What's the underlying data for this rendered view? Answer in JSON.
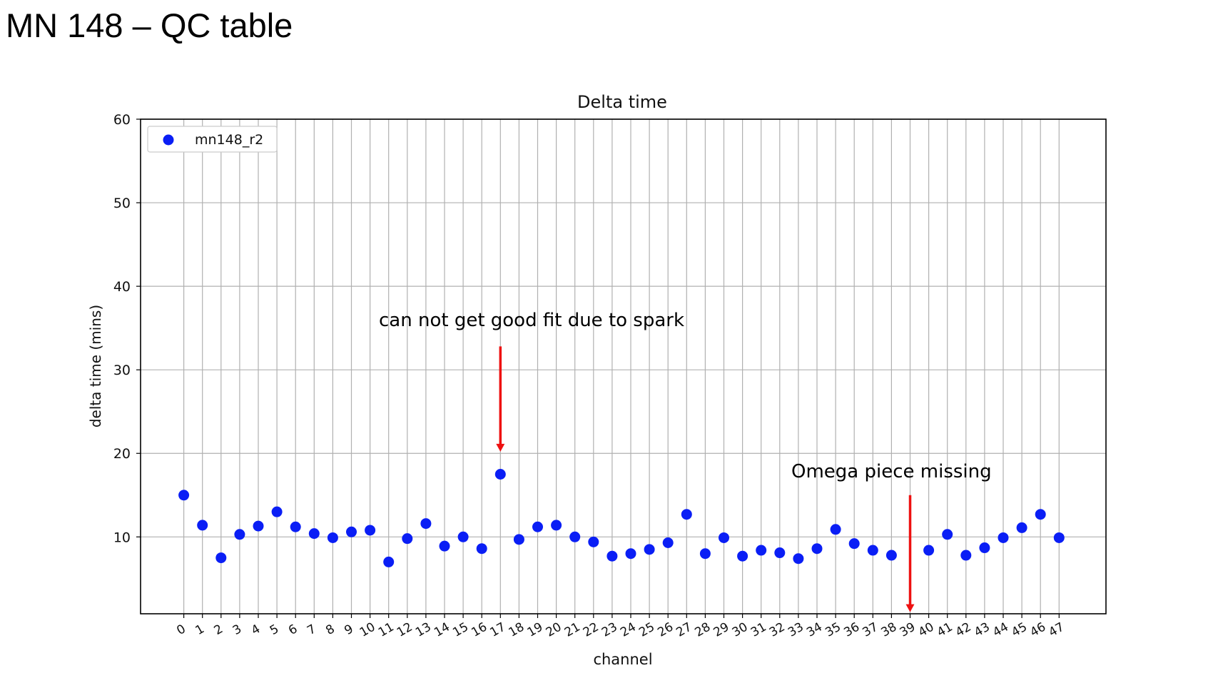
{
  "slide": {
    "title": "MN 148 – QC table"
  },
  "chart_data": {
    "type": "scatter",
    "title": "Delta time",
    "xlabel": "channel",
    "ylabel": "delta time (mins)",
    "ylim": [
      0.8,
      60
    ],
    "yticks": [
      10,
      20,
      30,
      40,
      50,
      60
    ],
    "grid": true,
    "legend_position": "top-left",
    "series": [
      {
        "name": "mn148_r2",
        "color": "#0a1ef5",
        "x": [
          0,
          1,
          2,
          3,
          4,
          5,
          6,
          7,
          8,
          9,
          10,
          11,
          12,
          13,
          14,
          15,
          16,
          17,
          18,
          19,
          20,
          21,
          22,
          23,
          24,
          25,
          26,
          27,
          28,
          29,
          30,
          31,
          32,
          33,
          34,
          35,
          36,
          37,
          38,
          40,
          41,
          42,
          43,
          44,
          45,
          46,
          47
        ],
        "y": [
          15.0,
          11.4,
          7.5,
          10.3,
          11.3,
          13.0,
          11.2,
          10.4,
          9.9,
          10.6,
          10.8,
          7.0,
          9.8,
          11.6,
          8.9,
          10.0,
          8.6,
          17.5,
          9.7,
          11.2,
          11.4,
          10.0,
          9.4,
          7.7,
          8.0,
          8.5,
          9.3,
          12.7,
          8.0,
          9.9,
          7.7,
          8.4,
          8.1,
          7.4,
          8.6,
          10.9,
          9.2,
          8.4,
          7.8,
          8.4,
          10.3,
          7.8,
          8.7,
          9.9,
          11.1,
          12.7,
          9.9
        ]
      }
    ],
    "categories": [
      "0",
      "1",
      "2",
      "3",
      "4",
      "5",
      "6",
      "7",
      "8",
      "9",
      "10",
      "11",
      "12",
      "13",
      "14",
      "15",
      "16",
      "17",
      "18",
      "19",
      "20",
      "21",
      "22",
      "23",
      "24",
      "25",
      "26",
      "27",
      "28",
      "29",
      "30",
      "31",
      "32",
      "33",
      "34",
      "35",
      "36",
      "37",
      "38",
      "39",
      "40",
      "41",
      "42",
      "43",
      "44",
      "45",
      "46",
      "47"
    ],
    "annotations": [
      {
        "text": "can not get good fit due to spark",
        "x": 17,
        "arrow_from_y": 32.8,
        "arrow_to_y": 20.2,
        "color": "#ee1111"
      },
      {
        "text": "Omega piece missing",
        "x": 39,
        "arrow_from_y": 15.0,
        "arrow_to_y": 1.0,
        "color": "#ee1111"
      }
    ]
  }
}
